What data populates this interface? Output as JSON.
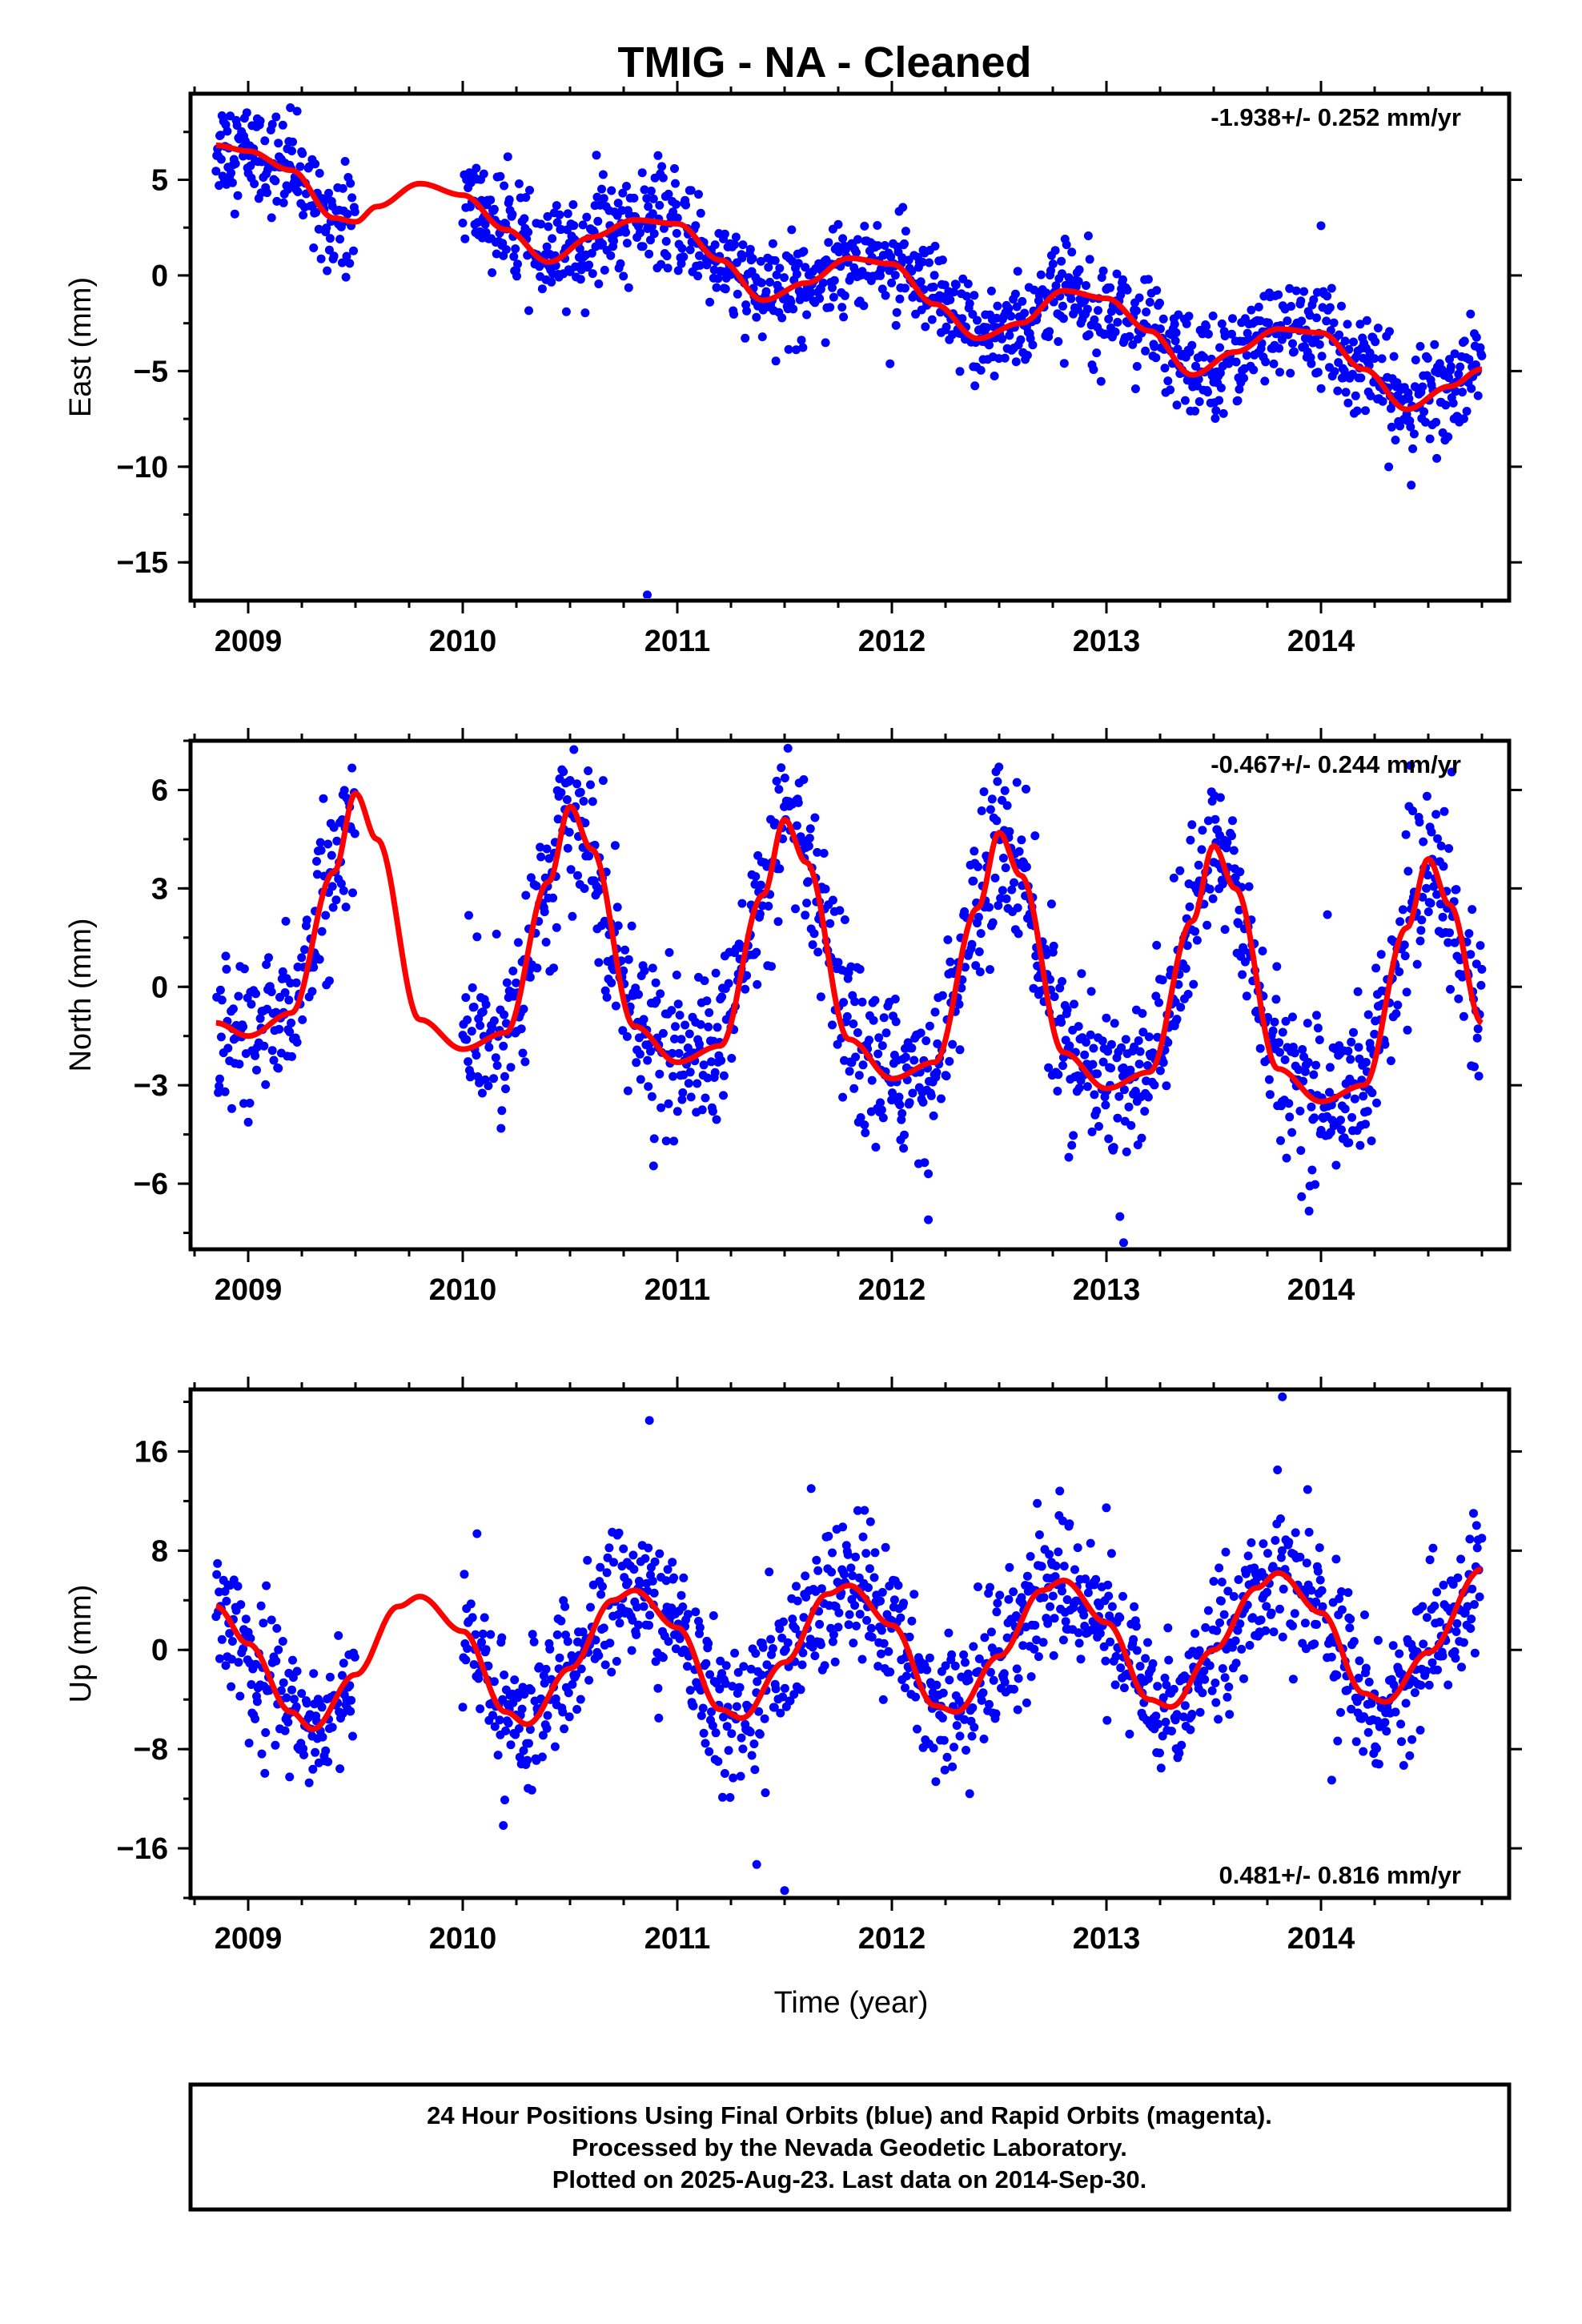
{
  "title": "TMIG  - NA - Cleaned",
  "xlabel": "Time (year)",
  "x_tick_labels": [
    "2009",
    "2010",
    "2011",
    "2012",
    "2013",
    "2014"
  ],
  "colors": {
    "final_orbits": "#0000ff",
    "rapid_orbits": "#ff00ff",
    "fit": "#ff0000"
  },
  "footer": {
    "line1": "24 Hour Positions Using Final Orbits (blue) and Rapid Orbits (magenta).",
    "line2": "Processed by the Nevada Geodetic Laboratory.",
    "line3": "Plotted on 2025-Aug-23. Last data on 2014-Sep-30."
  },
  "chart_data": [
    {
      "type": "scatter",
      "component": "east",
      "ylabel": "East (mm)",
      "rate": "-1.938+/- 0.252 mm/yr",
      "rate_position": "top-right",
      "xlim": [
        2008.75,
        2014.9
      ],
      "ylim": [
        -17,
        9.5
      ],
      "y_tick_labels": [
        "5",
        "0",
        "−5",
        "−10",
        "−15"
      ],
      "y_ticks": [
        5,
        0,
        -5,
        -10,
        -15
      ],
      "trend_mm_per_yr": -1.938,
      "seasonal_segments": [
        {
          "x": [
            2008.85,
            2009.5
          ],
          "center": 4.5
        },
        {
          "x": [
            2010.0,
            2014.75
          ],
          "center": 2.3
        }
      ],
      "fit_curve": {
        "x": [
          2008.85,
          2009.0,
          2009.2,
          2009.4,
          2009.5,
          2009.6,
          2009.8,
          2010.0,
          2010.2,
          2010.4,
          2010.6,
          2010.8,
          2011.0,
          2011.2,
          2011.4,
          2011.6,
          2011.8,
          2012.0,
          2012.2,
          2012.4,
          2012.6,
          2012.8,
          2013.0,
          2013.2,
          2013.4,
          2013.6,
          2013.8,
          2014.0,
          2014.2,
          2014.4,
          2014.6,
          2014.75
        ],
        "y": [
          6.8,
          6.5,
          5.5,
          3.0,
          2.8,
          3.6,
          4.8,
          4.2,
          2.4,
          0.7,
          2.0,
          2.9,
          2.7,
          0.8,
          -1.3,
          -0.4,
          0.9,
          0.6,
          -1.5,
          -3.3,
          -2.5,
          -0.8,
          -1.2,
          -2.9,
          -5.2,
          -4.0,
          -2.8,
          -3.0,
          -4.9,
          -7.0,
          -5.8,
          -4.9
        ]
      },
      "outliers": [
        {
          "x": 2010.86,
          "y": -16.7
        },
        {
          "x": 2014.0,
          "y": 2.6
        }
      ]
    },
    {
      "type": "scatter",
      "component": "north",
      "ylabel": "North (mm)",
      "rate": "-0.467+/- 0.244 mm/yr",
      "rate_position": "top-right",
      "xlim": [
        2008.75,
        2014.9
      ],
      "ylim": [
        -8,
        7.5
      ],
      "y_tick_labels": [
        "6",
        "3",
        "0",
        "−3",
        "−6"
      ],
      "y_ticks": [
        6,
        3,
        0,
        -3,
        -6
      ],
      "fit_curve": {
        "x": [
          2008.85,
          2009.0,
          2009.2,
          2009.4,
          2009.5,
          2009.6,
          2009.8,
          2010.0,
          2010.2,
          2010.4,
          2010.5,
          2010.6,
          2010.8,
          2011.0,
          2011.2,
          2011.4,
          2011.5,
          2011.6,
          2011.8,
          2012.0,
          2012.2,
          2012.4,
          2012.5,
          2012.6,
          2012.8,
          2013.0,
          2013.2,
          2013.4,
          2013.5,
          2013.6,
          2013.8,
          2014.0,
          2014.2,
          2014.4,
          2014.5,
          2014.6,
          2014.75
        ],
        "y": [
          -1.1,
          -1.5,
          -0.8,
          3.5,
          5.9,
          4.5,
          -1.0,
          -1.9,
          -1.4,
          3.2,
          5.5,
          4.2,
          -1.2,
          -2.3,
          -1.8,
          2.8,
          5.1,
          3.8,
          -1.6,
          -2.8,
          -2.3,
          2.4,
          4.7,
          3.4,
          -2.0,
          -3.1,
          -2.6,
          2.0,
          4.3,
          3.0,
          -2.5,
          -3.5,
          -3.0,
          1.8,
          3.9,
          2.5,
          -1.1
        ]
      },
      "seasonal_segments": [
        {
          "x": [
            2008.85,
            2009.5
          ]
        },
        {
          "x": [
            2010.0,
            2014.75
          ]
        }
      ],
      "outliers": [
        {
          "x": 2012.17,
          "y": -7.1
        },
        {
          "x": 2013.08,
          "y": -7.8
        },
        {
          "x": 2014.03,
          "y": 2.2
        },
        {
          "x": 2012.17,
          "y": -5.7
        }
      ]
    },
    {
      "type": "scatter",
      "component": "up",
      "ylabel": "Up (mm)",
      "rate": "0.481+/- 0.816 mm/yr",
      "rate_position": "bottom-right",
      "xlim": [
        2008.75,
        2014.9
      ],
      "ylim": [
        -20,
        21
      ],
      "y_tick_labels": [
        "16",
        "8",
        "0",
        "−8",
        "−16"
      ],
      "y_ticks": [
        16,
        8,
        0,
        -8,
        -16
      ],
      "fit_curve": {
        "x": [
          2008.85,
          2009.0,
          2009.2,
          2009.3,
          2009.5,
          2009.7,
          2009.8,
          2010.0,
          2010.2,
          2010.3,
          2010.5,
          2010.7,
          2010.8,
          2011.0,
          2011.2,
          2011.3,
          2011.5,
          2011.7,
          2011.8,
          2012.0,
          2012.2,
          2012.3,
          2012.5,
          2012.7,
          2012.8,
          2013.0,
          2013.2,
          2013.3,
          2013.5,
          2013.7,
          2013.8,
          2014.0,
          2014.2,
          2014.3,
          2014.5,
          2014.75
        ],
        "y": [
          3.5,
          0.5,
          -5.0,
          -6.4,
          -2.0,
          3.5,
          4.3,
          1.5,
          -5.0,
          -6.0,
          -1.5,
          4.0,
          4.8,
          1.8,
          -4.8,
          -5.5,
          -1.0,
          4.5,
          5.2,
          2.0,
          -4.5,
          -5.0,
          -0.5,
          4.8,
          5.6,
          2.2,
          -4.0,
          -4.6,
          0.0,
          5.0,
          6.2,
          3.0,
          -3.5,
          -4.2,
          -0.2,
          6.5
        ]
      },
      "seasonal_segments": [
        {
          "x": [
            2008.85,
            2009.5
          ]
        },
        {
          "x": [
            2010.0,
            2014.75
          ]
        }
      ],
      "outliers": [
        {
          "x": 2013.82,
          "y": 20.4
        },
        {
          "x": 2011.5,
          "y": -19.4
        },
        {
          "x": 2010.87,
          "y": 18.5
        },
        {
          "x": 2011.37,
          "y": -17.3
        },
        {
          "x": 2014.05,
          "y": -10.5
        }
      ]
    }
  ]
}
